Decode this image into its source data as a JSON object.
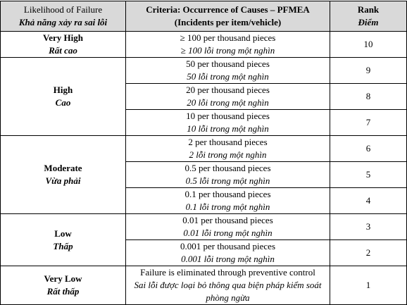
{
  "header": {
    "likelihood": {
      "en": "Likelihood of Failure",
      "vi": "Khả năng xảy ra sai lỗi"
    },
    "criteria": {
      "en": "Criteria: Occurrence of Causes – PFMEA",
      "sub": "(Incidents per item/vehicle)"
    },
    "rank": {
      "en": "Rank",
      "vi": "Điểm"
    }
  },
  "groups": [
    {
      "en": "Very High",
      "vi": "Rất cao",
      "rows": [
        {
          "en": "≥ 100 per thousand pieces",
          "vi": "≥ 100 lỗi trong một nghìn",
          "rank": 10
        }
      ]
    },
    {
      "en": "High",
      "vi": "Cao",
      "rows": [
        {
          "en": "50 per thousand pieces",
          "vi": "50 lỗi trong một nghìn",
          "rank": 9
        },
        {
          "en": "20 per thousand pieces",
          "vi": "20 lỗi trong một nghìn",
          "rank": 8
        },
        {
          "en": "10 per thousand pieces",
          "vi": "10 lỗi trong một nghìn",
          "rank": 7
        }
      ]
    },
    {
      "en": "Moderate",
      "vi": "Vừa phải",
      "rows": [
        {
          "en": "2 per thousand pieces",
          "vi": "2 lỗi trong một nghìn",
          "rank": 6
        },
        {
          "en": "0.5 per thousand pieces",
          "vi": "0.5 lỗi trong một nghìn",
          "rank": 5
        },
        {
          "en": "0.1 per thousand pieces",
          "vi": "0.1 lỗi trong một nghìn",
          "rank": 4
        }
      ]
    },
    {
      "en": "Low",
      "vi": "Thấp",
      "rows": [
        {
          "en": "0.01 per thousand pieces",
          "vi": "0.01 lỗi trong một nghìn",
          "rank": 3
        },
        {
          "en": "0.001 per thousand pieces",
          "vi": "0.001 lỗi trong một nghìn",
          "rank": 2
        }
      ]
    },
    {
      "en": "Very Low",
      "vi": "Rất thấp",
      "rows": [
        {
          "en": "Failure is eliminated through preventive control",
          "vi": "Sai lỗi được loại bỏ thông qua biện pháp kiểm soát phòng ngừa",
          "rank": 1
        }
      ]
    }
  ]
}
